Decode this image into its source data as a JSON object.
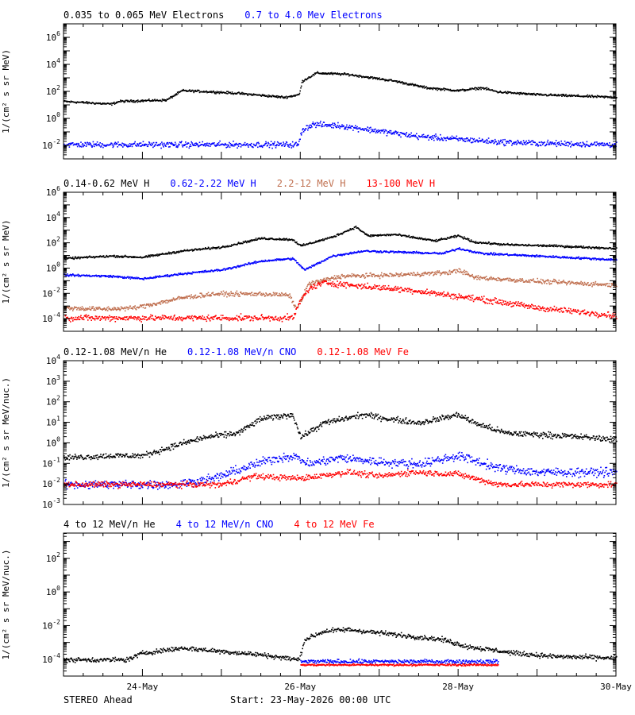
{
  "footer": {
    "spacecraft": "STEREO Ahead",
    "start": "Start: 23-May-2026 00:00 UTC"
  },
  "x_axis": {
    "ticks": [
      {
        "day": 1,
        "label": "24-May"
      },
      {
        "day": 3,
        "label": "26-May"
      },
      {
        "day": 5,
        "label": "28-May"
      },
      {
        "day": 7,
        "label": "30-May"
      }
    ],
    "range": [
      0.0,
      7.0
    ]
  },
  "chart_data": [
    {
      "type": "scatter",
      "title_entries": [
        {
          "text": "0.035 to 0.065 MeV Electrons",
          "color": "#000000"
        },
        {
          "text": "0.7 to 4.0 Mev Electrons",
          "color": "#0000ff"
        }
      ],
      "ylabel": "1/(cm² s sr MeV)",
      "yscale": "log",
      "ylim_exp": [
        -3,
        7
      ],
      "ytick_exps": [
        -2,
        0,
        2,
        4,
        6
      ],
      "series": [
        {
          "color": "#000000",
          "noise": 0.07,
          "x": [
            0.0,
            0.6,
            0.7,
            1.3,
            1.5,
            1.9,
            2.2,
            2.8,
            2.98,
            3.02,
            3.2,
            3.6,
            4.2,
            4.6,
            5.0,
            5.3,
            5.5,
            6.0,
            7.0
          ],
          "y": [
            1.3,
            1.1,
            1.3,
            1.4,
            2.1,
            2.0,
            1.9,
            1.6,
            1.8,
            2.8,
            3.4,
            3.3,
            2.8,
            2.3,
            2.1,
            2.3,
            2.0,
            1.8,
            1.6
          ]
        },
        {
          "color": "#0000ff",
          "noise": 0.18,
          "x": [
            0.0,
            2.97,
            3.02,
            3.15,
            3.5,
            4.0,
            4.5,
            5.0,
            5.5,
            6.0,
            7.0
          ],
          "y": [
            -1.9,
            -1.9,
            -0.8,
            -0.4,
            -0.5,
            -0.9,
            -1.3,
            -1.5,
            -1.7,
            -1.8,
            -1.9
          ]
        }
      ]
    },
    {
      "type": "scatter",
      "title_entries": [
        {
          "text": "0.14-0.62 MeV H",
          "color": "#000000"
        },
        {
          "text": "0.62-2.22 MeV H",
          "color": "#0000ff"
        },
        {
          "text": "2.2-12 MeV H",
          "color": "#c07050"
        },
        {
          "text": "13-100 MeV H",
          "color": "#ff0000"
        }
      ],
      "ylabel": "1/(cm² s sr MeV)",
      "yscale": "log",
      "ylim_exp": [
        -5,
        6
      ],
      "ytick_exps": [
        -4,
        -2,
        0,
        2,
        4,
        6
      ],
      "series": [
        {
          "color": "#000000",
          "noise": 0.07,
          "x": [
            0.0,
            0.6,
            1.0,
            1.5,
            2.0,
            2.5,
            2.9,
            3.0,
            3.4,
            3.7,
            3.85,
            4.2,
            4.7,
            5.0,
            5.2,
            5.6,
            6.2,
            7.0
          ],
          "y": [
            0.8,
            1.0,
            0.9,
            1.4,
            1.7,
            2.4,
            2.3,
            1.8,
            2.5,
            3.3,
            2.6,
            2.7,
            2.2,
            2.6,
            2.1,
            1.9,
            1.8,
            1.6
          ]
        },
        {
          "color": "#0000ff",
          "noise": 0.07,
          "x": [
            0.0,
            0.6,
            1.0,
            1.5,
            2.0,
            2.5,
            2.9,
            3.05,
            3.4,
            3.8,
            4.3,
            4.8,
            5.0,
            5.3,
            6.0,
            7.0
          ],
          "y": [
            -0.5,
            -0.6,
            -0.8,
            -0.4,
            -0.1,
            0.6,
            0.8,
            -0.1,
            1.0,
            1.4,
            1.3,
            1.2,
            1.6,
            1.2,
            1.0,
            0.7
          ]
        },
        {
          "color": "#c07050",
          "noise": 0.15,
          "x": [
            0.0,
            0.5,
            0.9,
            1.5,
            1.9,
            2.5,
            2.85,
            2.95,
            3.1,
            3.5,
            4.2,
            4.9,
            5.0,
            5.2,
            6.0,
            7.0
          ],
          "y": [
            -3.1,
            -3.2,
            -3.1,
            -2.3,
            -2.0,
            -2.0,
            -2.1,
            -3.2,
            -1.2,
            -0.6,
            -0.5,
            -0.3,
            -0.1,
            -0.7,
            -1.0,
            -1.3
          ]
        },
        {
          "color": "#ff0000",
          "noise": 0.2,
          "x": [
            0.0,
            2.9,
            3.0,
            3.1,
            3.3,
            3.8,
            4.4,
            5.0,
            5.5,
            6.0,
            7.0
          ],
          "y": [
            -3.9,
            -3.9,
            -2.5,
            -1.6,
            -1.1,
            -1.4,
            -1.7,
            -2.2,
            -2.6,
            -3.1,
            -3.7
          ]
        }
      ]
    },
    {
      "type": "scatter",
      "title_entries": [
        {
          "text": "0.12-1.08 MeV/n He",
          "color": "#000000"
        },
        {
          "text": "0.12-1.08 MeV/n CNO",
          "color": "#0000ff"
        },
        {
          "text": "0.12-1.08 MeV Fe",
          "color": "#ff0000"
        }
      ],
      "ylabel": "1/(cm² s sr MeV/nuc.)",
      "yscale": "log",
      "ylim_exp": [
        -3,
        4
      ],
      "ytick_exps": [
        -3,
        -2,
        -1,
        0,
        1,
        2,
        3,
        4
      ],
      "series": [
        {
          "color": "#000000",
          "noise": 0.12,
          "x": [
            0.0,
            0.6,
            1.0,
            1.5,
            1.8,
            2.2,
            2.5,
            2.9,
            3.0,
            3.3,
            3.8,
            4.1,
            4.5,
            5.0,
            5.2,
            5.6,
            6.2,
            7.0
          ],
          "y": [
            -0.7,
            -0.6,
            -0.6,
            0.0,
            0.3,
            0.5,
            1.2,
            1.4,
            0.3,
            1.0,
            1.4,
            1.2,
            1.0,
            1.4,
            1.0,
            0.5,
            0.4,
            0.2
          ]
        },
        {
          "color": "#0000ff",
          "noise": 0.18,
          "x": [
            0.0,
            1.4,
            1.9,
            2.2,
            2.6,
            2.9,
            3.1,
            3.5,
            4.0,
            4.5,
            5.0,
            5.5,
            6.0,
            7.0
          ],
          "y": [
            -2.0,
            -2.0,
            -1.7,
            -1.3,
            -0.8,
            -0.6,
            -1.0,
            -0.7,
            -0.9,
            -1.0,
            -0.6,
            -1.2,
            -1.4,
            -1.4
          ]
        },
        {
          "color": "#ff0000",
          "noise": 0.12,
          "x": [
            0.0,
            2.0,
            2.4,
            3.0,
            3.6,
            4.0,
            4.4,
            5.0,
            5.5,
            7.0
          ],
          "y": [
            -2.0,
            -2.0,
            -1.6,
            -1.7,
            -1.4,
            -1.6,
            -1.4,
            -1.5,
            -2.0,
            -2.0
          ]
        }
      ]
    },
    {
      "type": "scatter",
      "title_entries": [
        {
          "text": "4 to 12 MeV/n He",
          "color": "#000000"
        },
        {
          "text": "4 to 12 MeV/n CNO",
          "color": "#0000ff"
        },
        {
          "text": "4 to 12 MeV Fe",
          "color": "#ff0000"
        }
      ],
      "ylabel": "1/(cm² s sr MeV/nuc.)",
      "yscale": "log",
      "ylim_exp": [
        -5,
        3.5
      ],
      "ytick_exps": [
        -4,
        -2,
        0,
        2
      ],
      "series": [
        {
          "color": "#000000",
          "noise": 0.12,
          "x": [
            0.0,
            0.8,
            1.0,
            1.5,
            2.0,
            2.5,
            2.98,
            3.05,
            3.3,
            3.6,
            4.2,
            4.8,
            5.1,
            5.4,
            5.7,
            6.2,
            7.0
          ],
          "y": [
            -4.0,
            -4.0,
            -3.6,
            -3.3,
            -3.5,
            -3.7,
            -4.0,
            -2.8,
            -2.3,
            -2.2,
            -2.5,
            -2.8,
            -3.2,
            -3.4,
            -3.6,
            -3.8,
            -3.9
          ]
        },
        {
          "color": "#0000ff",
          "noise": 0.1,
          "x": [
            3.0,
            3.5,
            4.0,
            4.5,
            5.2,
            5.5
          ],
          "y": [
            -4.1,
            -4.1,
            -4.1,
            -4.1,
            -4.1,
            -4.1
          ]
        },
        {
          "color": "#ff0000",
          "noise": 0.05,
          "x": [
            3.0,
            3.5,
            4.0,
            4.5,
            5.0,
            5.5
          ],
          "y": [
            -4.3,
            -4.3,
            -4.3,
            -4.3,
            -4.3,
            -4.3
          ]
        }
      ]
    }
  ]
}
